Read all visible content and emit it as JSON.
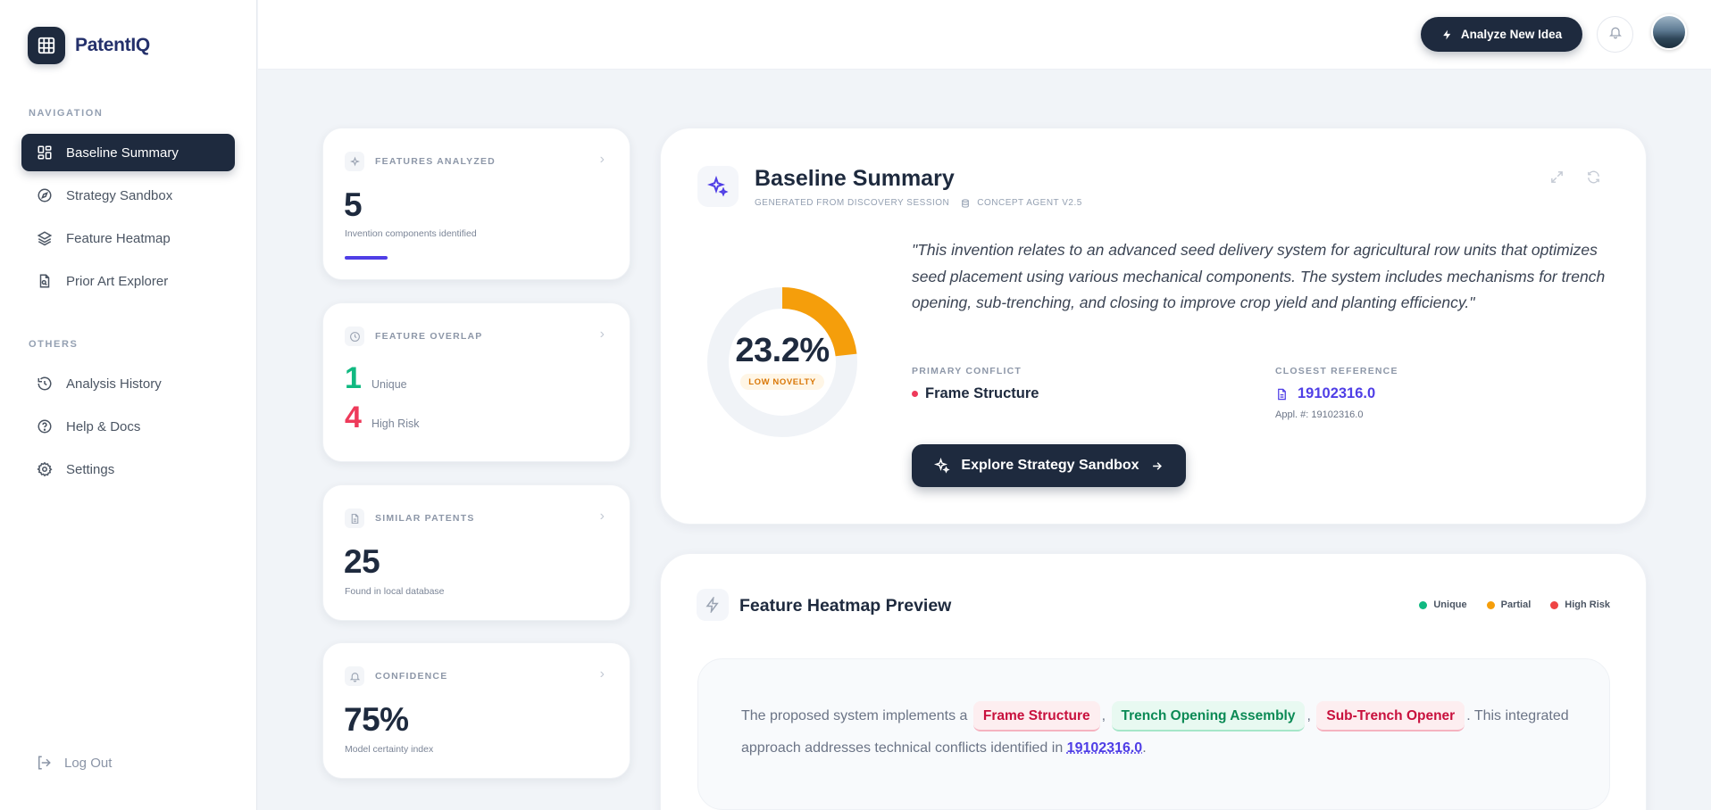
{
  "brand": {
    "name": "PatentIQ",
    "logo_icon": "grid-icon"
  },
  "nav": {
    "section_label": "NAVIGATION",
    "items": [
      {
        "label": "Baseline Summary",
        "icon": "dashboard-icon",
        "active": true
      },
      {
        "label": "Strategy Sandbox",
        "icon": "compass-icon"
      },
      {
        "label": "Feature Heatmap",
        "icon": "layers-icon"
      },
      {
        "label": "Prior Art Explorer",
        "icon": "file-search-icon"
      }
    ]
  },
  "others": {
    "section_label": "OTHERS",
    "items": [
      {
        "label": "Analysis History",
        "icon": "history-icon"
      },
      {
        "label": "Help & Docs",
        "icon": "help-icon"
      },
      {
        "label": "Settings",
        "icon": "gear-icon"
      }
    ]
  },
  "logout_label": "Log Out",
  "topbar": {
    "analyze_label": "Analyze New Idea"
  },
  "stats": {
    "features": {
      "label": "FEATURES ANALYZED",
      "value": "5",
      "sub": "Invention components identified"
    },
    "overlap": {
      "label": "FEATURE OVERLAP",
      "unique_count": "1",
      "unique_label": "Unique",
      "risk_count": "4",
      "risk_label": "High Risk"
    },
    "similar": {
      "label": "SIMILAR PATENTS",
      "value": "25",
      "sub": "Found in local database"
    },
    "confidence": {
      "label": "CONFIDENCE",
      "value": "75%",
      "sub": "Model certainty index"
    }
  },
  "baseline": {
    "title": "Baseline Summary",
    "meta_source": "GENERATED FROM DISCOVERY SESSION",
    "meta_agent": "CONCEPT AGENT V2.5",
    "novelty_score": 23.2,
    "novelty_display": "23.2%",
    "novelty_badge": "LOW NOVELTY",
    "quote": "\"This invention relates to an advanced seed delivery system for agricultural row units that optimizes seed placement using various mechanical components. The system includes mechanisms for trench opening, sub-trenching, and closing to improve crop yield and planting efficiency.\"",
    "primary_conflict_label": "PRIMARY CONFLICT",
    "primary_conflict": "Frame Structure",
    "closest_reference_label": "CLOSEST REFERENCE",
    "closest_reference": "19102316.0",
    "closest_reference_sub": "Appl. #: 19102316.0",
    "explore_label": "Explore Strategy Sandbox"
  },
  "heatmap": {
    "title": "Feature Heatmap Preview",
    "legend": [
      {
        "label": "Unique",
        "color": "#10b981"
      },
      {
        "label": "Partial",
        "color": "#f59e0b"
      },
      {
        "label": "High Risk",
        "color": "#ef4444"
      }
    ],
    "text_prefix": "The proposed system implements a",
    "chips": [
      {
        "label": "Frame Structure",
        "status": "risk"
      },
      {
        "label": "Trench Opening Assembly",
        "status": "unique"
      },
      {
        "label": "Sub-Trench Opener",
        "status": "risk"
      }
    ],
    "text_middle": ". This integrated approach addresses technical conflicts identified in",
    "reference": "19102316.0",
    "text_suffix": "."
  },
  "colors": {
    "primary": "#1e2a3e",
    "accent": "#4f3ee6",
    "gauge": "#f59e0b",
    "unique": "#10b981",
    "risk": "#ee3a5a"
  }
}
